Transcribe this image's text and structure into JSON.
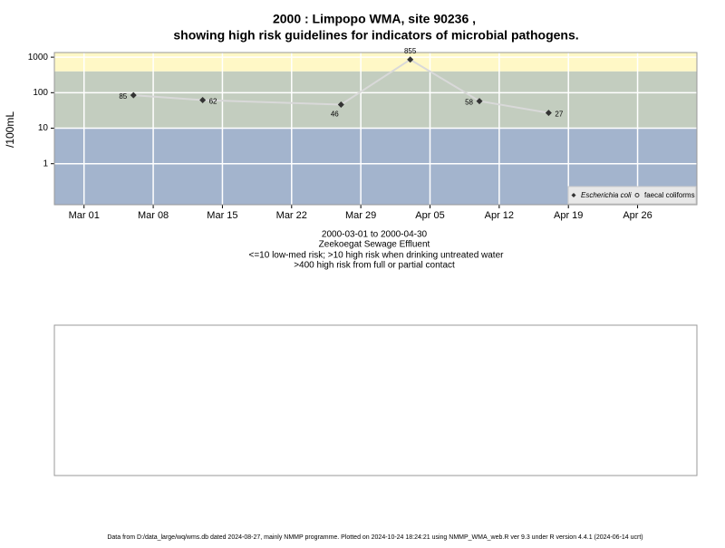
{
  "chart_data": {
    "type": "line",
    "title": [
      "2000 : Limpopo WMA, site 90236 ,",
      "showing high risk guidelines for indicators of microbial pathogens."
    ],
    "y_label": "/100mL",
    "notes": [
      "2000-03-01 to 2000-04-30",
      "Zeekoegat Sewage Effluent",
      "<=10 low-med risk; >10 high risk when drinking untreated water",
      ">400 high risk from full or partial contact"
    ],
    "footer": "Data from D:/data_large/wq/wms.db dated 2024-08-27, mainly NMMP programme. Plotted on 2024-10-24 18:24:21 using NMMP_WMA_web.R ver 9.3 under R version 4.4.1 (2024-06-14 ucrt)",
    "x": [
      "2000-03-06",
      "2000-03-13",
      "2000-03-27",
      "2000-04-03",
      "2000-04-10",
      "2000-04-17"
    ],
    "series": [
      {
        "name": "Escherichia coli",
        "color": "#333333",
        "line_color": "#d9d9d9",
        "values": [
          85,
          62,
          46,
          855,
          58,
          27
        ]
      },
      {
        "name": "faecal coliforms",
        "color": "#333333",
        "values": [
          null,
          null,
          null,
          null,
          null,
          null
        ]
      }
    ],
    "xlim": [
      "2000-02-27",
      "2000-05-02"
    ],
    "xticks": [
      {
        "value": "2000-03-01",
        "label": "Mar 01"
      },
      {
        "value": "2000-03-08",
        "label": "Mar 08"
      },
      {
        "value": "2000-03-15",
        "label": "Mar 15"
      },
      {
        "value": "2000-03-22",
        "label": "Mar 22"
      },
      {
        "value": "2000-03-29",
        "label": "Mar 29"
      },
      {
        "value": "2000-04-05",
        "label": "Apr 05"
      },
      {
        "value": "2000-04-12",
        "label": "Apr 12"
      },
      {
        "value": "2000-04-19",
        "label": "Apr 19"
      },
      {
        "value": "2000-04-26",
        "label": "Apr 26"
      }
    ],
    "ylim": [
      0.07,
      1350
    ],
    "yticks": [
      1,
      10,
      100,
      1000
    ],
    "log_y": true,
    "grid": true,
    "thresholds": [
      10,
      400
    ],
    "band_colors": [
      "#a3b4cd",
      "#c3cdbf",
      "#fff8c6"
    ],
    "legend": "bottom-right"
  }
}
